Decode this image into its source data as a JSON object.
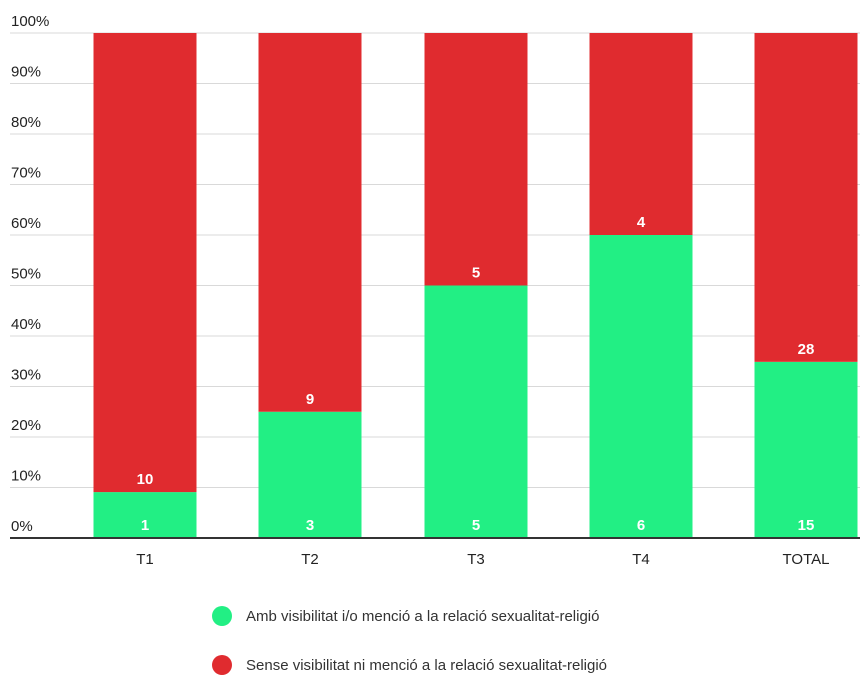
{
  "chart_data": {
    "type": "bar",
    "stacked": true,
    "percent_stacked": true,
    "categories": [
      "T1",
      "T2",
      "T3",
      "T4",
      "TOTAL"
    ],
    "series": [
      {
        "name": "Amb visibilitat i/o menció a la relació sexualitat-religió",
        "color": "#22ef84",
        "values": [
          1,
          3,
          5,
          6,
          15
        ],
        "labels": [
          "1",
          "3",
          "5",
          "6",
          "15"
        ]
      },
      {
        "name": "Sense visibilitat ni menció a la relació sexualitat-religió",
        "color": "#e02b2f",
        "values": [
          10,
          9,
          5,
          4,
          28
        ],
        "labels": [
          "10",
          "9",
          "5",
          "4",
          "28"
        ]
      }
    ],
    "y_ticks": [
      "0%",
      "10%",
      "20%",
      "30%",
      "40%",
      "50%",
      "60%",
      "70%",
      "80%",
      "90%",
      "100%"
    ],
    "ylim": [
      0,
      100
    ],
    "grid": true,
    "legend_position": "bottom"
  }
}
